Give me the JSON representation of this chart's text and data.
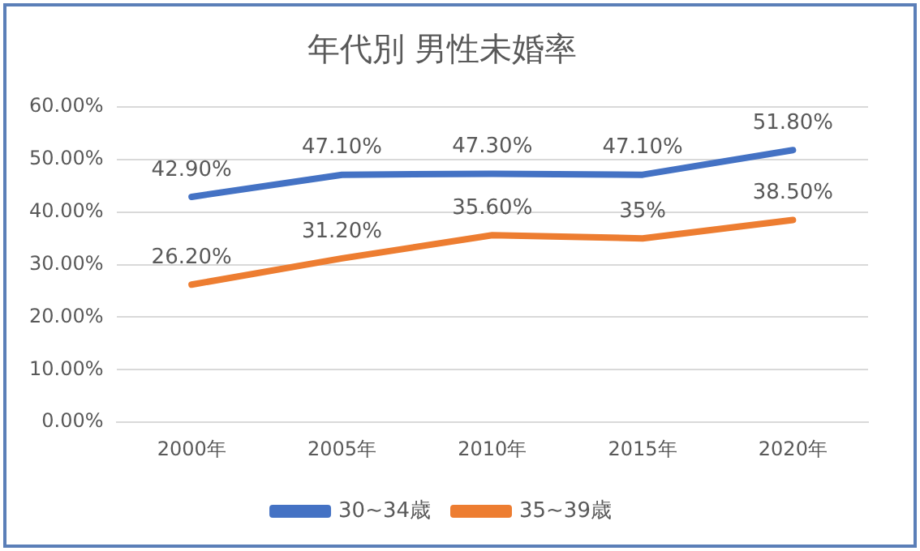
{
  "chart_data": {
    "type": "line",
    "title": "年代別 男性未婚率",
    "categories": [
      "2000年",
      "2005年",
      "2010年",
      "2015年",
      "2020年"
    ],
    "series": [
      {
        "name": "30~34歳",
        "color": "#4472c4",
        "values": [
          42.9,
          47.1,
          47.3,
          47.1,
          51.8
        ],
        "value_labels": [
          "42.90%",
          "47.10%",
          "47.30%",
          "47.10%",
          "51.80%"
        ]
      },
      {
        "name": "35~39歳",
        "color": "#ed7d31",
        "values": [
          26.2,
          31.2,
          35.6,
          35,
          38.5
        ],
        "value_labels": [
          "26.20%",
          "31.20%",
          "35.60%",
          "35%",
          "38.50%"
        ]
      }
    ],
    "ylim": [
      0,
      60
    ],
    "yticks": [
      {
        "value": 0,
        "label": "0.00%"
      },
      {
        "value": 10,
        "label": "10.00%"
      },
      {
        "value": 20,
        "label": "20.00%"
      },
      {
        "value": 30,
        "label": "30.00%"
      },
      {
        "value": 40,
        "label": "40.00%"
      },
      {
        "value": 50,
        "label": "50.00%"
      },
      {
        "value": 60,
        "label": "60.00%"
      }
    ],
    "grid": "y",
    "legend": "bottom",
    "marker": "none",
    "line_style": "solid"
  }
}
